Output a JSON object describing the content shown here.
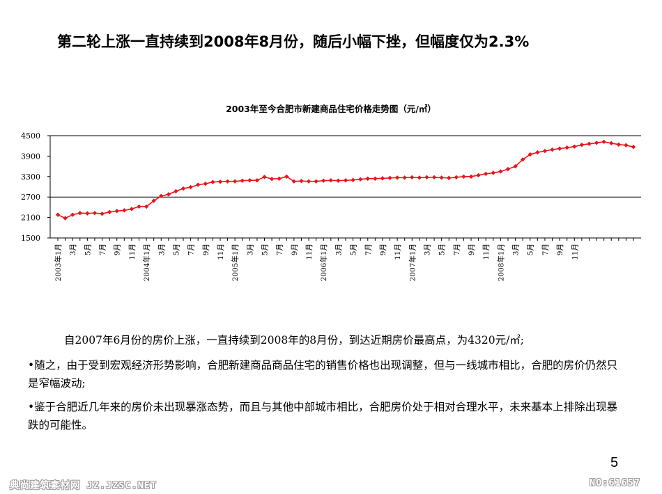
{
  "slide": {
    "headline": "第二轮上涨一直持续到2008年8月份，随后小幅下挫，但幅度仅为2.3%",
    "page_number": "5",
    "paragraphs": [
      "自2007年6月份的房价上涨，一直持续到2008年的8月份，到达近期房价最高点，为4320元/㎡;",
      "•随之，由于受到宏观经济形势影响，合肥新建商品商品住宅的销售价格也出现调整，但与一线城市相比，合肥的房价仍然只是窄幅波动;",
      "•鉴于合肥近几年来的房价未出现暴涨态势，而且与其他中部城市相比，合肥房价处于相对合理水平，未来基本上排除出现暴跌的可能性。"
    ],
    "watermark_left": "典尚建筑素材网 JZ.JZSC.NET",
    "watermark_right": "NO:61657"
  },
  "chart_data": {
    "type": "line",
    "title": "2003年至今合肥市新建商品住宅价格走势图（元/㎡）",
    "xlabel": "",
    "ylabel": "",
    "ylim": [
      1500,
      4500
    ],
    "yticks": [
      1500,
      2100,
      2700,
      3300,
      3900,
      4500
    ],
    "grid": "horizontal line at 2700",
    "line_color": "#e8151b",
    "marker": "diamond",
    "x_tick_labels": [
      "2003年1月",
      "3月",
      "5月",
      "7月",
      "9月",
      "11月",
      "2004年1月",
      "3月",
      "5月",
      "7月",
      "9月",
      "11月",
      "2005年1月",
      "3月",
      "5月",
      "7月",
      "9月",
      "11月",
      "2006年1月",
      "3月",
      "5月",
      "7月",
      "9月",
      "11月",
      "2007年1月",
      "3月",
      "5月",
      "7月",
      "9月",
      "11月",
      "2008年1月",
      "3月",
      "5月",
      "7月",
      "9月",
      "11月"
    ],
    "series": [
      {
        "values": [
          2180,
          2080,
          2180,
          2230,
          2220,
          2230,
          2210,
          2260,
          2290,
          2310,
          2350,
          2420,
          2420,
          2590,
          2730,
          2780,
          2870,
          2950,
          2990,
          3060,
          3090,
          3140,
          3150,
          3160,
          3160,
          3180,
          3190,
          3190,
          3290,
          3230,
          3240,
          3300,
          3160,
          3170,
          3160,
          3160,
          3180,
          3190,
          3180,
          3190,
          3200,
          3220,
          3240,
          3240,
          3250,
          3260,
          3270,
          3270,
          3280,
          3270,
          3280,
          3280,
          3270,
          3260,
          3280,
          3300,
          3300,
          3340,
          3380,
          3410,
          3450,
          3520,
          3600,
          3800,
          3950,
          4010,
          4050,
          4090,
          4120,
          4150,
          4180,
          4230,
          4260,
          4290,
          4320,
          4280,
          4240,
          4220,
          4170
        ]
      }
    ]
  }
}
